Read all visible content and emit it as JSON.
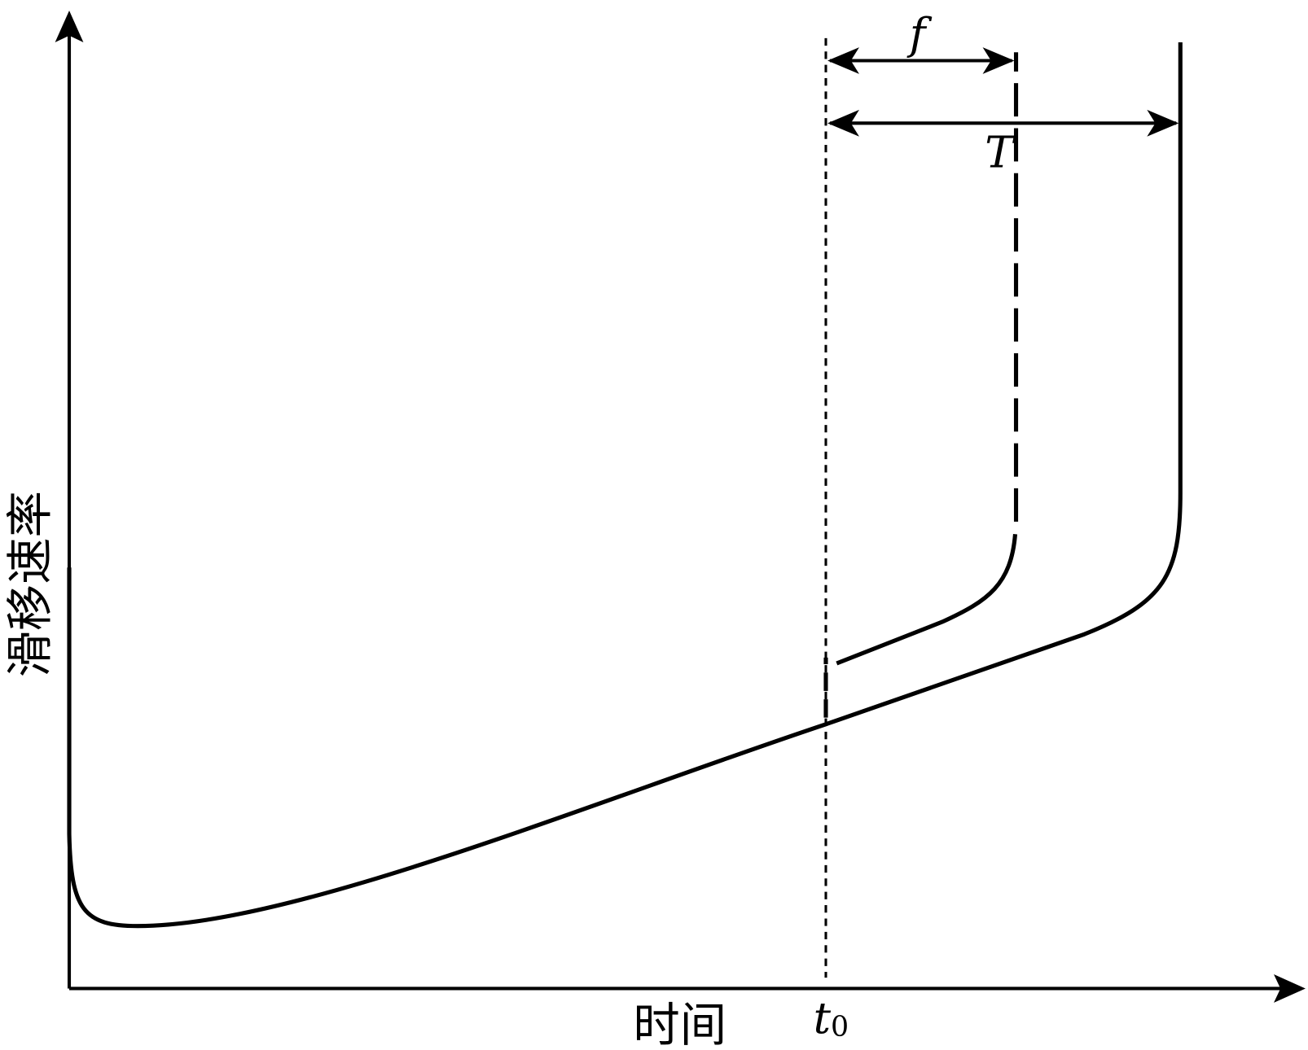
{
  "axes": {
    "y_label": "滑移速率",
    "x_label": "时间"
  },
  "markers": {
    "t0": {
      "base": "t",
      "sub": "0"
    },
    "f": "f",
    "T": "T"
  }
}
